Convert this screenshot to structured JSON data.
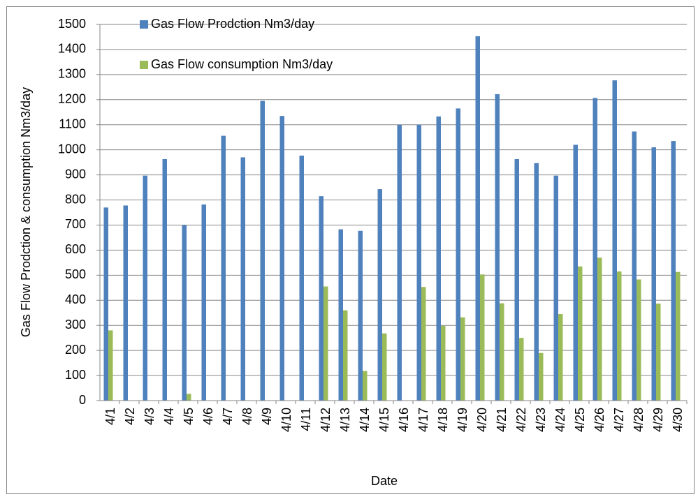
{
  "chart_data": {
    "type": "bar",
    "x_label": "Date",
    "y_label": "Gas Flow Prodction & consumption Nm3/day",
    "categories": [
      "4/1",
      "4/2",
      "4/3",
      "4/4",
      "4/5",
      "4/6",
      "4/7",
      "4/8",
      "4/9",
      "4/10",
      "4/11",
      "4/12",
      "4/13",
      "4/14",
      "4/15",
      "4/16",
      "4/17",
      "4/18",
      "4/19",
      "4/20",
      "4/21",
      "4/22",
      "4/23",
      "4/24",
      "4/25",
      "4/26",
      "4/27",
      "4/28",
      "4/29",
      "4/30"
    ],
    "series": [
      {
        "name": "Gas Flow Prodction Nm3/day",
        "color": "#4f81bd",
        "values": [
          770,
          778,
          897,
          963,
          700,
          782,
          1056,
          970,
          1195,
          1135,
          977,
          815,
          683,
          677,
          843,
          1100,
          1100,
          1133,
          1165,
          1453,
          1222,
          963,
          947,
          897,
          1020,
          1207,
          1277,
          1073,
          1010,
          1035
        ]
      },
      {
        "name": "Gas Flow consumption Nm3/day",
        "color": "#9bbb59",
        "values": [
          280,
          0,
          0,
          0,
          27,
          0,
          0,
          0,
          0,
          0,
          0,
          455,
          360,
          118,
          268,
          0,
          453,
          298,
          332,
          503,
          388,
          250,
          190,
          345,
          535,
          570,
          515,
          483,
          387,
          513
        ]
      }
    ],
    "ylim": [
      0,
      1500
    ],
    "yticks": [
      0,
      100,
      200,
      300,
      400,
      500,
      600,
      700,
      800,
      900,
      1000,
      1100,
      1200,
      1300,
      1400,
      1500
    ],
    "grid": true,
    "legend": "top-left"
  }
}
